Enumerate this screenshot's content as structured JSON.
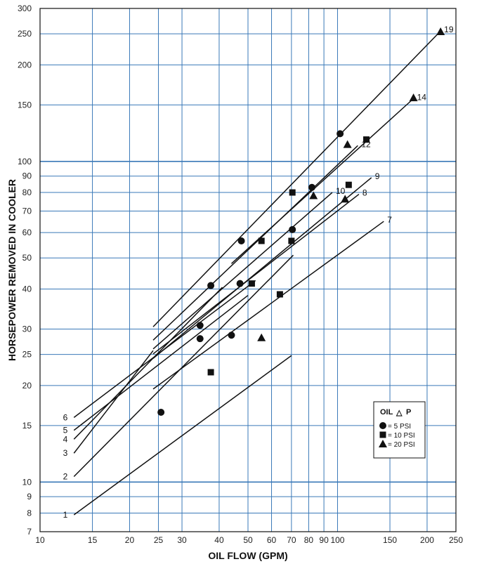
{
  "chart_data": {
    "type": "line",
    "title": "",
    "xlabel": "OIL FLOW (GPM)",
    "ylabel": "HORSEPOWER REMOVED IN COOLER",
    "x_scale": "log",
    "y_scale": "log",
    "xlim": [
      10,
      250
    ],
    "ylim": [
      7,
      300
    ],
    "grid": true,
    "x_tick_labels": [
      "10",
      "15",
      "20",
      "25",
      "30",
      "40",
      "50",
      "60",
      "70",
      "80",
      "90",
      "100",
      "150",
      "200",
      "250"
    ],
    "x_tick_values": [
      10,
      15,
      20,
      25,
      30,
      40,
      50,
      60,
      70,
      80,
      90,
      100,
      150,
      200,
      250
    ],
    "x_grid": [
      10,
      15,
      20,
      25,
      30,
      40,
      50,
      60,
      70,
      80,
      90,
      100,
      150,
      200,
      250
    ],
    "y_tick_labels": [
      "7",
      "8",
      "9",
      "10",
      "15",
      "20",
      "25",
      "30",
      "40",
      "50",
      "60",
      "70",
      "80",
      "90",
      "100",
      "150",
      "200",
      "250",
      "300"
    ],
    "y_tick_values": [
      7,
      8,
      9,
      10,
      15,
      20,
      25,
      30,
      40,
      50,
      60,
      70,
      80,
      90,
      100,
      150,
      200,
      250,
      300
    ],
    "y_grid": [
      7,
      8,
      9,
      10,
      15,
      20,
      25,
      30,
      40,
      50,
      60,
      70,
      80,
      90,
      100,
      150,
      200,
      250,
      300
    ],
    "lines": [
      {
        "label": "1",
        "x": [
          13,
          70
        ],
        "y": [
          7.9,
          24.8
        ],
        "label_at": "start"
      },
      {
        "label": "2",
        "x": [
          13,
          71
        ],
        "y": [
          10.4,
          51
        ],
        "label_at": "start"
      },
      {
        "label": "3",
        "x": [
          13,
          24
        ],
        "y": [
          12.3,
          25.7
        ],
        "label_at": "start"
      },
      {
        "label": "4",
        "x": [
          13,
          41
        ],
        "y": [
          13.6,
          40.5
        ],
        "label_at": "start"
      },
      {
        "label": "5",
        "x": [
          13,
          50
        ],
        "y": [
          14.5,
          38.2
        ],
        "label_at": "start"
      },
      {
        "label": "6",
        "x": [
          13,
          53
        ],
        "y": [
          15.9,
          42.5
        ],
        "label_at": "start"
      },
      {
        "label": "7",
        "x": [
          24,
          143
        ],
        "y": [
          19.5,
          65
        ],
        "label_at": "end"
      },
      {
        "label": "8",
        "x": [
          24,
          118
        ],
        "y": [
          25.1,
          79
        ],
        "label_at": "end"
      },
      {
        "label": "9",
        "x": [
          24,
          130
        ],
        "y": [
          24.3,
          89
        ],
        "label_at": "end"
      },
      {
        "label": "10",
        "x": [
          24,
          96
        ],
        "y": [
          26,
          80
        ],
        "label_at": "end"
      },
      {
        "label": "12",
        "x": [
          24,
          117
        ],
        "y": [
          27.7,
          112
        ],
        "label_at": "end"
      },
      {
        "label": "14",
        "x": [
          44,
          180
        ],
        "y": [
          48,
          157
        ],
        "label_at": "end"
      },
      {
        "label": "19",
        "x": [
          24,
          222
        ],
        "y": [
          30.5,
          255
        ],
        "label_at": "end"
      }
    ],
    "series": [
      {
        "name": "= 5 PSI",
        "marker": "circle",
        "x": [
          25.5,
          34.5,
          34.5,
          37.5,
          44,
          47,
          47.5,
          70.5,
          82,
          102
        ],
        "y": [
          16.5,
          28,
          30.8,
          41,
          28.7,
          41.6,
          56.5,
          61.3,
          83,
          122
        ]
      },
      {
        "name": "= 10 PSI",
        "marker": "square",
        "x": [
          37.5,
          51.5,
          55.5,
          64,
          70,
          70.5,
          109,
          125
        ],
        "y": [
          22,
          41.6,
          56.5,
          38.5,
          56.5,
          80,
          84.5,
          117
        ]
      },
      {
        "name": "= 20 PSI",
        "marker": "triangle",
        "x": [
          55.5,
          83,
          106,
          108,
          180,
          222
        ],
        "y": [
          28.2,
          78.2,
          76.3,
          113,
          158,
          254
        ]
      }
    ],
    "legend": {
      "title": "OIL",
      "title_symbol": "△",
      "title_suffix": "P",
      "placement": "lower-right"
    }
  }
}
